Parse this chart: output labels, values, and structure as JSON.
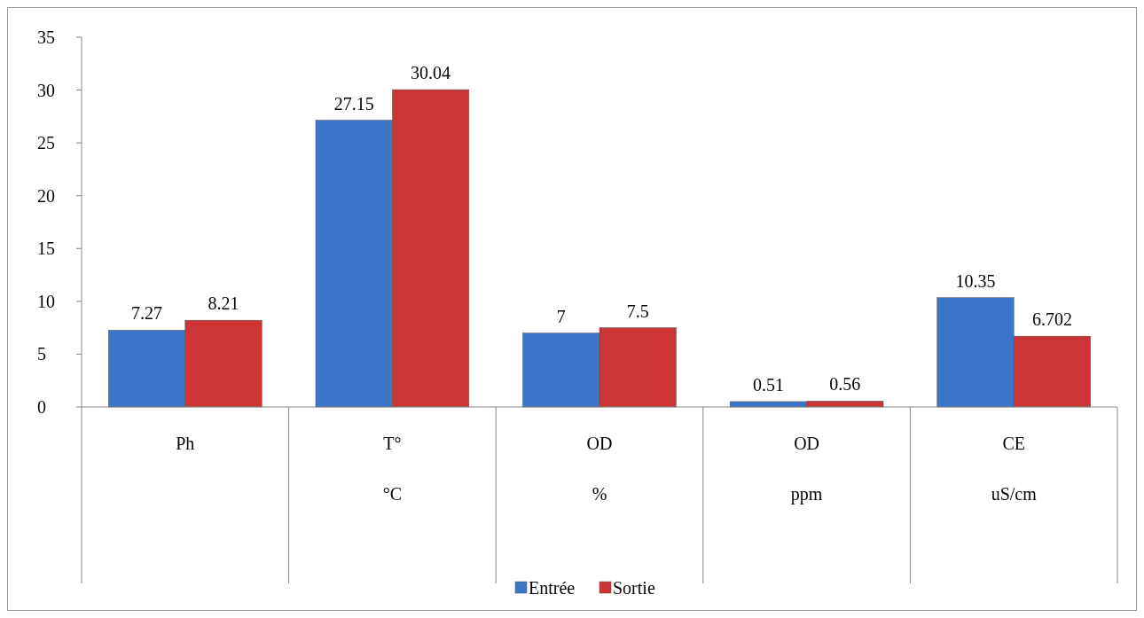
{
  "chart_data": {
    "type": "bar",
    "categories": [
      "Ph",
      "T°\n°C",
      "OD\n%",
      "OD\nppm",
      "CE\nuS/cm"
    ],
    "series": [
      {
        "name": "Entrée",
        "color": "#3c76c8",
        "values": [
          7.27,
          27.15,
          7,
          0.51,
          10.35
        ]
      },
      {
        "name": "Sortie",
        "color": "#cc3535",
        "values": [
          8.21,
          30.04,
          7.5,
          0.56,
          6.702
        ]
      }
    ],
    "ylim": [
      0,
      35
    ],
    "yticks": [
      0,
      5,
      10,
      15,
      20,
      25,
      30,
      35
    ],
    "grid": false,
    "legend": "bottom",
    "data_labels": true
  }
}
